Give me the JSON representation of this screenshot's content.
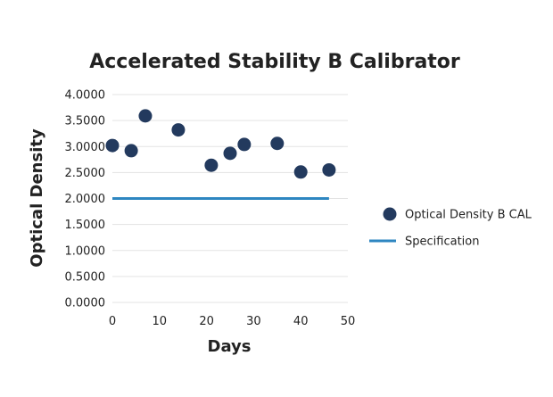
{
  "chart_data": {
    "type": "scatter",
    "title": "Accelerated Stability B Calibrator",
    "xlabel": "Days",
    "ylabel": "Optical Density",
    "xlim": [
      0,
      50
    ],
    "ylim": [
      0,
      4
    ],
    "x_ticks": [
      "0",
      "10",
      "20",
      "30",
      "40",
      "50"
    ],
    "y_ticks": [
      "0.0000",
      "0.5000",
      "1.0000",
      "1.5000",
      "2.0000",
      "2.5000",
      "3.0000",
      "3.5000",
      "4.0000"
    ],
    "grid": true,
    "legend_position": "right",
    "series": [
      {
        "name": "Optical Density B CAL",
        "type": "scatter",
        "color": "#233a5e",
        "points": [
          {
            "x": 0,
            "y": 3.02
          },
          {
            "x": 4,
            "y": 2.92
          },
          {
            "x": 7,
            "y": 3.59
          },
          {
            "x": 14,
            "y": 3.32
          },
          {
            "x": 21,
            "y": 2.64
          },
          {
            "x": 25,
            "y": 2.87
          },
          {
            "x": 28,
            "y": 3.04
          },
          {
            "x": 35,
            "y": 3.06
          },
          {
            "x": 40,
            "y": 2.51
          },
          {
            "x": 46,
            "y": 2.55
          }
        ]
      },
      {
        "name": "Specification",
        "type": "line",
        "color": "#2e86c1",
        "points": [
          {
            "x": 0,
            "y": 2.0
          },
          {
            "x": 46,
            "y": 2.0
          }
        ]
      }
    ]
  }
}
